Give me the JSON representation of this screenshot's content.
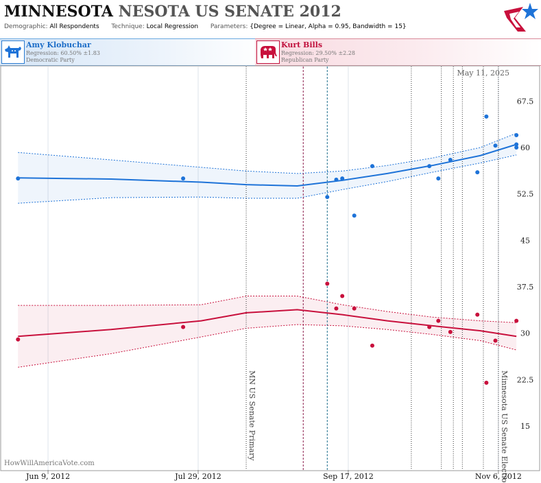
{
  "header": {
    "title_state": "MINNESOTA",
    "title_rest": "NESOTA US SENATE 2012",
    "demographic_label": "Demographic:",
    "demographic_value": "All Respondents",
    "technique_label": "Technique:",
    "technique_value": "Local Regression",
    "parameters_label": "Parameters:",
    "parameters_value": "{Degree = Linear, Alpha = 0.95, Bandwidth = 15}"
  },
  "candidates": [
    {
      "name": "Amy Klobuchar",
      "regression": "Regression: 60.50% ±1.83",
      "party": "Democratic Party",
      "color": "#1e73d8"
    },
    {
      "name": "Kurt Bills",
      "regression": "Regression: 29.50% ±2.28",
      "party": "Republican Party",
      "color": "#c8103c"
    }
  ],
  "watermark": "HowWillAmericaVote.com",
  "date_stamp": "May 11, 2025",
  "chart_data": {
    "type": "scatter",
    "x_axis": {
      "type": "date",
      "min": "2012-05-24",
      "max": "2012-11-09",
      "ticks": [
        {
          "x": "2012-06-09",
          "label": "Jun 9, 2012"
        },
        {
          "x": "2012-07-29",
          "label": "Jul 29, 2012"
        },
        {
          "x": "2012-09-17",
          "label": "Sep 17, 2012"
        },
        {
          "x": "2012-11-06",
          "label": "Nov 6, 2012"
        }
      ]
    },
    "y_axis": {
      "min": 7.8,
      "max": 73.3,
      "position": "right",
      "ticks": [
        {
          "y": 15,
          "label": "15"
        },
        {
          "y": 22.5,
          "label": "22.5"
        },
        {
          "y": 30,
          "label": "30"
        },
        {
          "y": 37.5,
          "label": "37.5"
        },
        {
          "y": 45,
          "label": "45"
        },
        {
          "y": 52.5,
          "label": "52.5"
        },
        {
          "y": 60,
          "label": "60"
        },
        {
          "y": 67.5,
          "label": "67.5"
        }
      ]
    },
    "vertical_lines": [
      {
        "x": "2012-08-14",
        "style": "dotted",
        "color": "#333333",
        "label": "MN US Senate Primary"
      },
      {
        "x": "2012-09-02",
        "style": "dashed",
        "color": "#8b1a4a",
        "label": ""
      },
      {
        "x": "2012-09-10",
        "style": "dashed",
        "color": "#1a6b8b",
        "label": ""
      },
      {
        "x": "2012-10-08",
        "style": "dotted",
        "color": "#333333",
        "label": ""
      },
      {
        "x": "2012-10-18",
        "style": "dotted",
        "color": "#333333",
        "label": ""
      },
      {
        "x": "2012-10-22",
        "style": "dotted",
        "color": "#333333",
        "label": ""
      },
      {
        "x": "2012-10-25",
        "style": "dotted",
        "color": "#333333",
        "label": ""
      },
      {
        "x": "2012-11-01",
        "style": "dotted",
        "color": "#333333",
        "label": ""
      },
      {
        "x": "2012-11-06",
        "style": "dotted",
        "color": "#333333",
        "label": "Minnesota US Senate Election"
      }
    ],
    "series": [
      {
        "name": "Amy Klobuchar",
        "color": "#1e73d8",
        "points": [
          {
            "x": "2012-05-30",
            "y": 55
          },
          {
            "x": "2012-07-24",
            "y": 55
          },
          {
            "x": "2012-09-10",
            "y": 52
          },
          {
            "x": "2012-09-13",
            "y": 54.8
          },
          {
            "x": "2012-09-15",
            "y": 55
          },
          {
            "x": "2012-09-19",
            "y": 49
          },
          {
            "x": "2012-09-25",
            "y": 57
          },
          {
            "x": "2012-10-14",
            "y": 57
          },
          {
            "x": "2012-10-17",
            "y": 55
          },
          {
            "x": "2012-10-21",
            "y": 58
          },
          {
            "x": "2012-10-30",
            "y": 56
          },
          {
            "x": "2012-11-02",
            "y": 65
          },
          {
            "x": "2012-11-05",
            "y": 60.3
          },
          {
            "x": "2012-11-12",
            "y": 62
          },
          {
            "x": "2012-11-12",
            "y": 60.5
          },
          {
            "x": "2012-11-12",
            "y": 60
          }
        ],
        "trend": [
          {
            "x": "2012-05-30",
            "y": 55.1,
            "lo": 51.0,
            "hi": 59.2
          },
          {
            "x": "2012-06-30",
            "y": 54.9,
            "lo": 51.9,
            "hi": 58.0
          },
          {
            "x": "2012-07-30",
            "y": 54.4,
            "lo": 52.0,
            "hi": 56.8
          },
          {
            "x": "2012-08-14",
            "y": 54.0,
            "lo": 51.8,
            "hi": 56.2
          },
          {
            "x": "2012-08-31",
            "y": 53.8,
            "lo": 51.8,
            "hi": 55.8
          },
          {
            "x": "2012-09-15",
            "y": 54.7,
            "lo": 53.2,
            "hi": 56.2
          },
          {
            "x": "2012-09-30",
            "y": 55.8,
            "lo": 54.5,
            "hi": 57.1
          },
          {
            "x": "2012-10-15",
            "y": 57.1,
            "lo": 56.0,
            "hi": 58.3
          },
          {
            "x": "2012-10-31",
            "y": 58.7,
            "lo": 57.5,
            "hi": 60.0
          },
          {
            "x": "2012-11-12",
            "y": 60.5,
            "lo": 58.8,
            "hi": 62.3
          }
        ]
      },
      {
        "name": "Kurt Bills",
        "color": "#c8103c",
        "points": [
          {
            "x": "2012-05-30",
            "y": 29
          },
          {
            "x": "2012-07-24",
            "y": 31
          },
          {
            "x": "2012-09-10",
            "y": 38
          },
          {
            "x": "2012-09-13",
            "y": 34
          },
          {
            "x": "2012-09-15",
            "y": 36
          },
          {
            "x": "2012-09-19",
            "y": 34
          },
          {
            "x": "2012-09-25",
            "y": 28
          },
          {
            "x": "2012-10-14",
            "y": 31
          },
          {
            "x": "2012-10-17",
            "y": 32
          },
          {
            "x": "2012-10-21",
            "y": 30.2
          },
          {
            "x": "2012-10-30",
            "y": 33
          },
          {
            "x": "2012-11-02",
            "y": 22
          },
          {
            "x": "2012-11-05",
            "y": 28.8
          },
          {
            "x": "2012-11-12",
            "y": 32
          }
        ],
        "trend": [
          {
            "x": "2012-05-30",
            "y": 29.5,
            "lo": 24.5,
            "hi": 34.5
          },
          {
            "x": "2012-06-30",
            "y": 30.6,
            "lo": 26.7,
            "hi": 34.5
          },
          {
            "x": "2012-07-30",
            "y": 32.0,
            "lo": 29.4,
            "hi": 34.6
          },
          {
            "x": "2012-08-14",
            "y": 33.3,
            "lo": 30.8,
            "hi": 36.0
          },
          {
            "x": "2012-08-31",
            "y": 33.8,
            "lo": 31.4,
            "hi": 36.0
          },
          {
            "x": "2012-09-15",
            "y": 33.0,
            "lo": 31.2,
            "hi": 34.6
          },
          {
            "x": "2012-09-30",
            "y": 32.0,
            "lo": 30.6,
            "hi": 33.5
          },
          {
            "x": "2012-10-15",
            "y": 31.2,
            "lo": 29.8,
            "hi": 32.6
          },
          {
            "x": "2012-10-31",
            "y": 30.4,
            "lo": 28.8,
            "hi": 32.0
          },
          {
            "x": "2012-11-12",
            "y": 29.5,
            "lo": 27.3,
            "hi": 31.7
          }
        ]
      }
    ]
  }
}
